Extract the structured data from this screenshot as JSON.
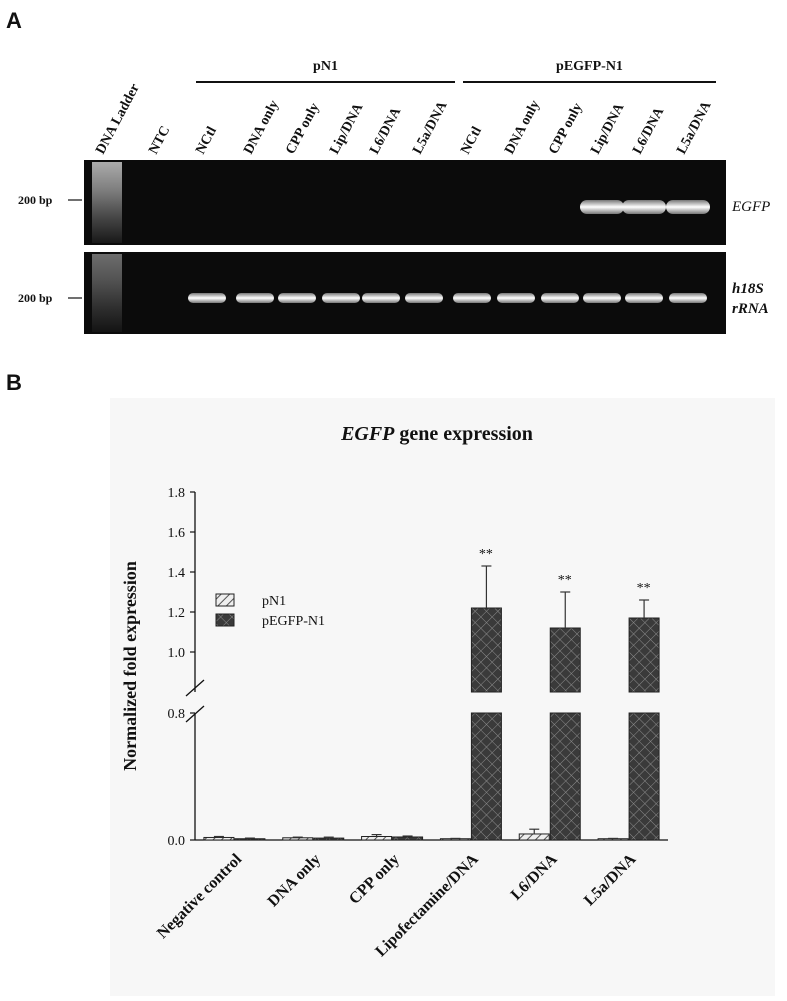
{
  "panel_a": {
    "letter": "A",
    "groups": [
      {
        "label": "pN1"
      },
      {
        "label": "pEGFP-N1"
      }
    ],
    "lanes": [
      "DNA Ladder",
      "NTC",
      "NCtl",
      "DNA only",
      "CPP only",
      "Lip/DNA",
      "L6/DNA",
      "L5a/DNA",
      "NCtl",
      "DNA only",
      "CPP only",
      "Lip/DNA",
      "L6/DNA",
      "L5a/DNA"
    ],
    "gels": [
      {
        "bp_label": "200 bp",
        "gene": "EGFP",
        "gene_line2": "",
        "band_lanes": [
          11,
          12,
          13
        ]
      },
      {
        "bp_label": "200 bp",
        "gene": "h18S",
        "gene_line2": "rRNA",
        "band_lanes": [
          2,
          3,
          4,
          5,
          6,
          7,
          8,
          9,
          10,
          11,
          12,
          13
        ]
      }
    ]
  },
  "panel_b": {
    "letter": "B"
  },
  "chart_data": {
    "type": "bar",
    "title_italic": "EGFP",
    "title_rest": " gene expression",
    "ylabel": "Normalized fold expression",
    "categories": [
      "Negative control",
      "DNA only",
      "CPP only",
      "Lipofectamine/DNA",
      "L6/DNA",
      "L5a/DNA"
    ],
    "series": [
      {
        "name": "pN1",
        "values": [
          0.016,
          0.014,
          0.022,
          0.008,
          0.038,
          0.008
        ],
        "errors": [
          0.006,
          0.004,
          0.012,
          0.002,
          0.03,
          0.002
        ],
        "pattern": "hatch",
        "color": "#d8d8d8"
      },
      {
        "name": "pEGFP-N1",
        "values": [
          0.008,
          0.012,
          0.019,
          1.22,
          1.12,
          1.17
        ],
        "errors": [
          0.004,
          0.006,
          0.006,
          0.21,
          0.18,
          0.09
        ],
        "pattern": "crosshatch",
        "color": "#3a3a3a"
      }
    ],
    "significance": [
      "",
      "",
      "",
      "**",
      "**",
      "**"
    ],
    "yaxis": {
      "broken": true,
      "lower_range": [
        0,
        0.8
      ],
      "upper_range": [
        0.8,
        1.8
      ],
      "ticks": [
        "0.0",
        "0.8",
        "1.0",
        "1.2",
        "1.4",
        "1.6",
        "1.8"
      ],
      "upper_ticks": [
        0.8,
        1.0,
        1.2,
        1.4,
        1.6,
        1.8
      ],
      "lower_ticks": [
        0.0
      ]
    },
    "legend_position": "left"
  }
}
